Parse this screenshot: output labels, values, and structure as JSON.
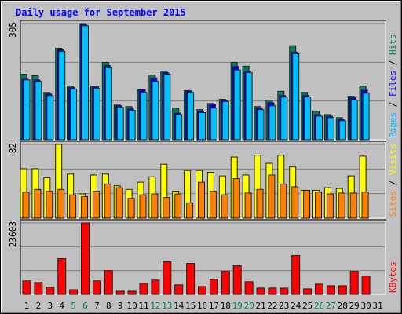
{
  "chart_data": [
    {
      "type": "bar",
      "title": "Daily usage for September 2015",
      "legend_separator": " / ",
      "ylim": [
        0,
        305
      ],
      "yticks": [
        305
      ],
      "grid": true,
      "series": [
        {
          "name": "Pages",
          "color": "#00c0ff",
          "values": [
            157,
            153,
            116,
            232,
            133,
            299,
            135,
            191,
            85,
            77,
            124,
            153,
            172,
            66,
            124,
            71,
            83,
            100,
            183,
            176,
            79,
            89,
            112,
            226,
            112,
            62,
            58,
            50,
            104,
            122,
            null
          ]
        },
        {
          "name": "Files",
          "color": "#0000ff",
          "values": [
            161,
            157,
            120,
            236,
            137,
            303,
            139,
            195,
            89,
            81,
            131,
            162,
            176,
            70,
            128,
            75,
            93,
            104,
            192,
            180,
            83,
            97,
            116,
            230,
            116,
            66,
            62,
            54,
            110,
            130,
            null
          ]
        },
        {
          "name": "Hits",
          "color": "#00805c",
          "values": [
            172,
            168,
            124,
            240,
            141,
            305,
            141,
            203,
            91,
            87,
            131,
            170,
            180,
            83,
            129,
            79,
            95,
            106,
            203,
            193,
            87,
            104,
            127,
            247,
            124,
            75,
            66,
            58,
            114,
            141,
            null
          ]
        }
      ]
    },
    {
      "type": "bar",
      "legend_separator": " / ",
      "ylim": [
        0,
        82
      ],
      "yticks": [
        82
      ],
      "grid": true,
      "series": [
        {
          "name": "Sites",
          "color": "#ff8000",
          "values": [
            29,
            32,
            30,
            32,
            26,
            24,
            30,
            38,
            34,
            22,
            26,
            27,
            23,
            27,
            17,
            40,
            30,
            26,
            44,
            28,
            32,
            48,
            38,
            35,
            31,
            29,
            27,
            28,
            28,
            29,
            null
          ]
        },
        {
          "name": "Visits",
          "color": "#ffff00",
          "values": [
            55,
            55,
            45,
            82,
            49,
            27,
            48,
            49,
            36,
            32,
            40,
            46,
            60,
            30,
            53,
            53,
            51,
            47,
            68,
            48,
            70,
            61,
            70,
            57,
            31,
            31,
            34,
            33,
            47,
            69,
            null
          ]
        }
      ]
    },
    {
      "type": "bar",
      "ylim": [
        0,
        23603
      ],
      "yticks": [
        23603
      ],
      "grid": true,
      "categories": [
        "1",
        "2",
        "3",
        "4",
        "5",
        "6",
        "7",
        "8",
        "9",
        "10",
        "11",
        "12",
        "13",
        "14",
        "15",
        "16",
        "17",
        "18",
        "19",
        "20",
        "21",
        "22",
        "23",
        "24",
        "25",
        "26",
        "27",
        "28",
        "29",
        "30",
        "31"
      ],
      "category_colors": [
        "#000000",
        "#000000",
        "#000000",
        "#000000",
        "#00805c",
        "#00805c",
        "#000000",
        "#000000",
        "#000000",
        "#000000",
        "#000000",
        "#00805c",
        "#00805c",
        "#000000",
        "#000000",
        "#000000",
        "#000000",
        "#000000",
        "#00805c",
        "#00805c",
        "#000000",
        "#000000",
        "#000000",
        "#000000",
        "#000000",
        "#00805c",
        "#00805c",
        "#000000",
        "#000000",
        "#000000",
        "#000000"
      ],
      "series": [
        {
          "name": "KBytes",
          "color": "#ff0000",
          "values": [
            4460,
            3930,
            2360,
            11800,
            1570,
            23603,
            4460,
            7870,
            1050,
            1050,
            3670,
            4720,
            10750,
            3150,
            10230,
            2620,
            4980,
            7610,
            9440,
            4200,
            2100,
            2100,
            2100,
            12850,
            1840,
            3410,
            2880,
            2880,
            7610,
            6030,
            null
          ]
        }
      ]
    }
  ]
}
